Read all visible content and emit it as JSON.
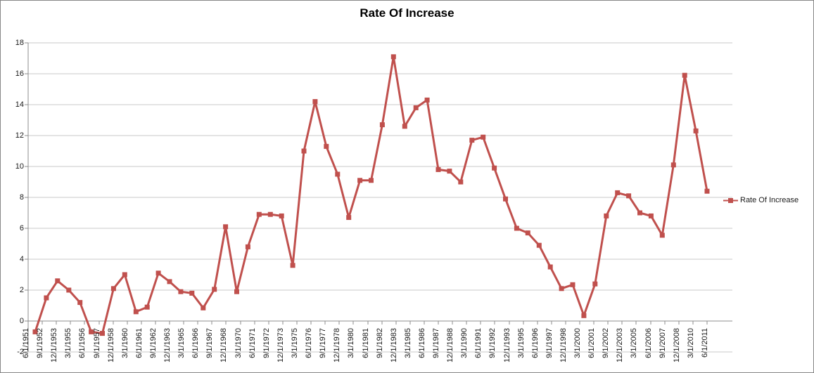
{
  "chart_data": {
    "type": "line",
    "title": "Rate Of Increase",
    "legend": {
      "label": "Rate Of Increase",
      "position": "right"
    },
    "grid": true,
    "ylim": [
      -2,
      18
    ],
    "y_tick_labels": [
      "18",
      "16",
      "14",
      "12",
      "10",
      "8",
      "6",
      "4",
      "2",
      "0",
      "-2"
    ],
    "x_tick_labels": [
      "6/1/1951",
      "9/1/1952",
      "12/1/1953",
      "3/1/1955",
      "6/1/1956",
      "9/1/1957",
      "12/1/1958",
      "3/1/1960",
      "6/1/1961",
      "9/1/1962",
      "12/1/1963",
      "3/1/1965",
      "6/1/1966",
      "9/1/1967",
      "12/1/1968",
      "3/1/1970",
      "6/1/1971",
      "9/1/1972",
      "12/1/1973",
      "3/1/1975",
      "6/1/1976",
      "9/1/1977",
      "12/1/1978",
      "3/1/1980",
      "6/1/1981",
      "9/1/1982",
      "12/1/1983",
      "3/1/1985",
      "6/1/1986",
      "9/1/1987",
      "12/1/1988",
      "3/1/1990",
      "6/1/1991",
      "9/1/1992",
      "12/1/1993",
      "3/1/1995",
      "6/1/1996",
      "9/1/1997",
      "12/1/1998",
      "3/1/2000",
      "6/1/2001",
      "9/1/2002",
      "12/1/2003",
      "3/1/2005",
      "6/1/2006",
      "9/1/2007",
      "12/1/2008",
      "3/1/2010",
      "6/1/2011"
    ],
    "series": [
      {
        "name": "Rate Of Increase",
        "color": "#C0504D",
        "marker": "square",
        "values": [
          -0.7,
          1.5,
          2.6,
          2.0,
          1.2,
          -0.7,
          -0.8,
          2.1,
          3.0,
          0.6,
          0.9,
          3.1,
          2.55,
          1.9,
          1.8,
          0.85,
          2.05,
          6.1,
          1.9,
          4.8,
          6.9,
          6.9,
          6.8,
          3.6,
          11.0,
          14.2,
          11.3,
          9.5,
          6.7,
          9.1,
          9.1,
          12.7,
          17.1,
          12.6,
          13.8,
          14.3,
          9.8,
          9.7,
          9.0,
          11.7,
          11.9,
          9.9,
          7.9,
          6.0,
          5.7,
          4.9,
          3.5,
          2.1,
          2.35,
          0.35,
          2.4,
          6.8,
          8.3,
          8.1,
          7.0,
          6.8,
          5.55,
          10.1,
          15.9,
          12.3,
          8.4
        ]
      }
    ],
    "colors": {
      "grid": "#c9c9c9",
      "axis": "#8c8c8c",
      "tick_text": "#1a1a1a",
      "title_text": "#000000"
    }
  }
}
